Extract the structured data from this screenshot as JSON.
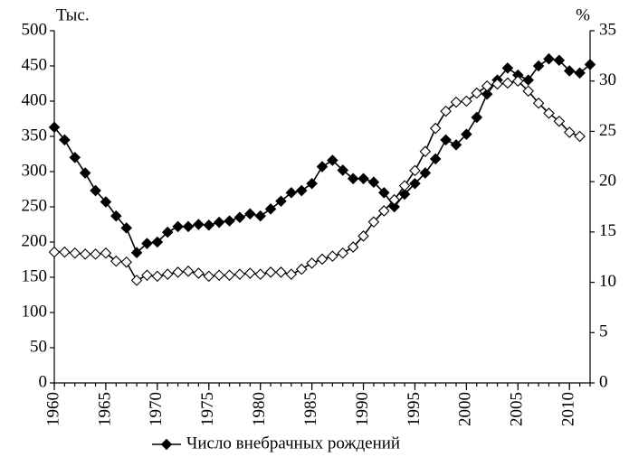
{
  "chart_data": {
    "type": "line",
    "y_label": "Тыс.",
    "y2_label": "%",
    "x": [
      1960,
      1961,
      1962,
      1963,
      1964,
      1965,
      1966,
      1967,
      1968,
      1969,
      1970,
      1971,
      1972,
      1973,
      1974,
      1975,
      1976,
      1977,
      1978,
      1979,
      1980,
      1981,
      1982,
      1983,
      1984,
      1985,
      1986,
      1987,
      1988,
      1989,
      1990,
      1991,
      1992,
      1993,
      1994,
      1995,
      1996,
      1997,
      1998,
      1999,
      2000,
      2001,
      2002,
      2003,
      2004,
      2005,
      2006,
      2007,
      2008,
      2009,
      2010,
      2011,
      2012
    ],
    "series": [
      {
        "name": "Число внебрачных рождений",
        "color": "#000000",
        "marker": "filled",
        "axis": "y",
        "values": [
          363,
          345,
          320,
          298,
          273,
          257,
          237,
          220,
          185,
          198,
          200,
          214,
          222,
          222,
          225,
          224,
          228,
          230,
          235,
          240,
          237,
          247,
          258,
          270,
          273,
          283,
          307,
          316,
          302,
          290,
          290,
          285,
          270,
          250,
          268,
          283,
          298,
          318,
          345,
          338,
          353,
          377,
          410,
          430,
          447,
          437,
          430,
          450,
          460,
          458,
          443,
          440,
          452
        ]
      },
      {
        "color": "#000000",
        "marker": "hollow",
        "axis": "y2",
        "values": [
          13.0,
          13.0,
          12.9,
          12.8,
          12.8,
          12.9,
          12.1,
          12.0,
          10.2,
          10.7,
          10.6,
          10.8,
          11.0,
          11.1,
          10.9,
          10.6,
          10.7,
          10.7,
          10.8,
          10.9,
          10.8,
          11.0,
          11.0,
          10.8,
          11.3,
          11.9,
          12.3,
          12.6,
          12.9,
          13.5,
          14.6,
          16.0,
          17.1,
          18.2,
          19.6,
          21.1,
          23.0,
          25.3,
          27.0,
          27.9,
          28.0,
          28.8,
          29.5,
          29.7,
          29.8,
          30.0,
          29.0,
          27.8,
          26.8,
          26.0,
          24.9,
          24.5,
          null
        ]
      }
    ],
    "xlim": [
      1960,
      2012
    ],
    "xticks": [
      1960,
      1965,
      1970,
      1975,
      1980,
      1985,
      1990,
      1995,
      2000,
      2005,
      2010
    ],
    "ylim": [
      0,
      500
    ],
    "yticks": [
      0,
      50,
      100,
      150,
      200,
      250,
      300,
      350,
      400,
      450,
      500
    ],
    "y2lim": [
      0,
      35
    ],
    "y2ticks": [
      0,
      5,
      10,
      15,
      20,
      25,
      30,
      35
    ],
    "legend": "bottom"
  }
}
